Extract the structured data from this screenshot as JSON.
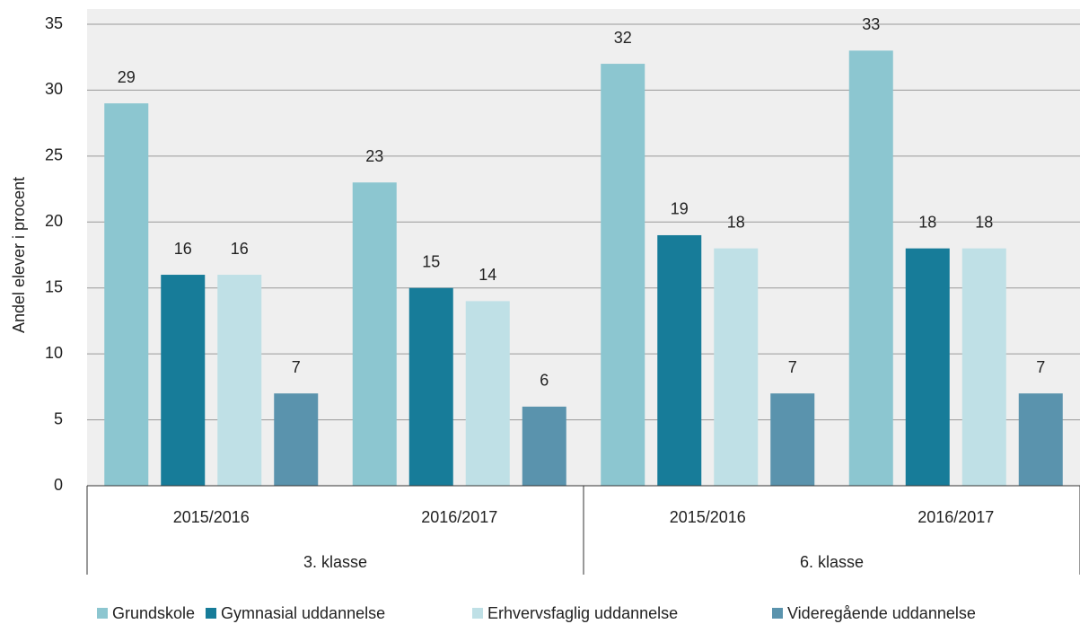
{
  "chart_data": {
    "type": "bar",
    "y_label": "Andel elever i procent",
    "categories": [
      "2015/2016",
      "2016/2017",
      "2015/2016",
      "2016/2017"
    ],
    "category_groups": [
      "3. klasse",
      "6. klasse"
    ],
    "series": [
      {
        "name": "Grundskole",
        "color": "#8cc6d0",
        "values": [
          29,
          23,
          32,
          33
        ]
      },
      {
        "name": "Gymnasial uddannelse",
        "color": "#177c99",
        "values": [
          16,
          15,
          19,
          18
        ]
      },
      {
        "name": "Erhvervsfaglig uddannelse",
        "color": "#bfe0e6",
        "values": [
          16,
          14,
          18,
          18
        ]
      },
      {
        "name": "Videregående uddannelse",
        "color": "#5a93ad",
        "values": [
          7,
          6,
          7,
          7
        ]
      }
    ],
    "ylim": [
      0,
      35
    ],
    "yticks": [
      0,
      5,
      10,
      15,
      20,
      25,
      30,
      35
    ],
    "grid": true,
    "legend": "bottom"
  }
}
